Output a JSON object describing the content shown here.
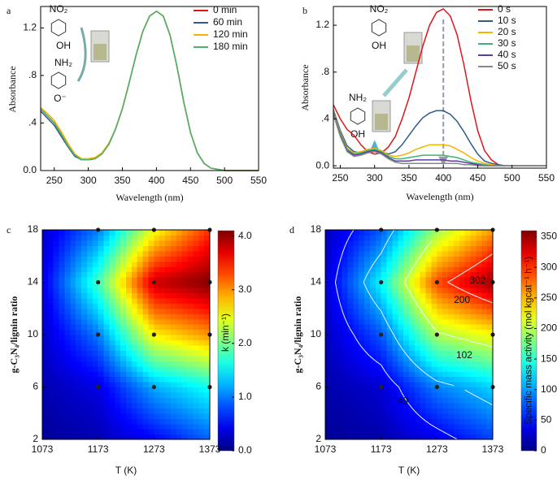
{
  "chart_data": [
    {
      "type": "line",
      "panel": "a",
      "xlabel": "Wavelength (nm)",
      "ylabel": "Absorbance",
      "x": [
        230,
        240,
        250,
        260,
        270,
        280,
        290,
        300,
        310,
        320,
        330,
        340,
        350,
        360,
        370,
        380,
        390,
        400,
        410,
        420,
        430,
        440,
        450,
        460,
        470,
        480,
        490,
        500,
        510,
        520,
        530,
        540,
        550
      ],
      "series": [
        {
          "name": "0 min",
          "color": "#e0151b",
          "values": [
            0.52,
            0.46,
            0.4,
            0.31,
            0.21,
            0.13,
            0.09,
            0.09,
            0.1,
            0.14,
            0.22,
            0.35,
            0.52,
            0.74,
            0.97,
            1.17,
            1.3,
            1.34,
            1.3,
            1.14,
            0.88,
            0.58,
            0.32,
            0.15,
            0.06,
            0.02,
            0.01,
            0,
            0,
            0,
            0,
            0,
            0
          ]
        },
        {
          "name": "60 min",
          "color": "#2f5b8a",
          "values": [
            0.5,
            0.44,
            0.38,
            0.29,
            0.2,
            0.12,
            0.09,
            0.09,
            0.1,
            0.14,
            0.22,
            0.35,
            0.52,
            0.74,
            0.97,
            1.17,
            1.3,
            1.34,
            1.3,
            1.14,
            0.88,
            0.58,
            0.32,
            0.15,
            0.06,
            0.02,
            0.01,
            0,
            0,
            0,
            0,
            0,
            0
          ]
        },
        {
          "name": "120 min",
          "color": "#f5b400",
          "values": [
            0.53,
            0.48,
            0.42,
            0.33,
            0.23,
            0.14,
            0.1,
            0.1,
            0.11,
            0.15,
            0.23,
            0.35,
            0.52,
            0.74,
            0.97,
            1.17,
            1.3,
            1.34,
            1.3,
            1.14,
            0.88,
            0.58,
            0.32,
            0.15,
            0.06,
            0.02,
            0.01,
            0,
            0,
            0,
            0,
            0,
            0
          ]
        },
        {
          "name": "180 min",
          "color": "#4cb36a",
          "values": [
            0.52,
            0.46,
            0.4,
            0.31,
            0.21,
            0.13,
            0.09,
            0.09,
            0.1,
            0.14,
            0.22,
            0.35,
            0.52,
            0.74,
            0.97,
            1.17,
            1.3,
            1.34,
            1.3,
            1.14,
            0.88,
            0.58,
            0.32,
            0.15,
            0.06,
            0.02,
            0.01,
            0,
            0,
            0,
            0,
            0,
            0
          ]
        }
      ],
      "xlim": [
        230,
        550
      ],
      "xticks": [
        250,
        300,
        350,
        400,
        450,
        500,
        550
      ],
      "ylim": [
        0,
        1.38
      ],
      "yticks": [
        {
          "value": 0,
          "label": "0.0"
        },
        {
          "value": 0.4,
          "label": ".4"
        },
        {
          "value": 0.8,
          "label": ".8"
        },
        {
          "value": 1.2,
          "label": "1.2"
        }
      ],
      "legend": "upper right",
      "inset_labels": [
        "NO₂",
        "OH",
        "NH₂",
        "O⁻"
      ]
    },
    {
      "type": "line",
      "panel": "b",
      "xlabel": "Wavelength (nm)",
      "ylabel": "Absorbance",
      "x": [
        240,
        250,
        260,
        270,
        280,
        290,
        300,
        310,
        320,
        330,
        340,
        350,
        360,
        370,
        380,
        390,
        400,
        410,
        420,
        430,
        440,
        450,
        460,
        470,
        480,
        490,
        500,
        510,
        520,
        530,
        540,
        550
      ],
      "series": [
        {
          "name": "0 s",
          "color": "#e0151b",
          "values": [
            0.52,
            0.4,
            0.31,
            0.26,
            0.18,
            0.12,
            0.1,
            0.11,
            0.16,
            0.25,
            0.4,
            0.58,
            0.8,
            1.02,
            1.2,
            1.31,
            1.34,
            1.28,
            1.12,
            0.86,
            0.56,
            0.3,
            0.13,
            0.05,
            0.01,
            0,
            0,
            0,
            0,
            0,
            0,
            0
          ]
        },
        {
          "name": "10 s",
          "color": "#2f5b8a",
          "values": [
            0.48,
            0.3,
            0.17,
            0.12,
            0.11,
            0.13,
            0.14,
            0.12,
            0.1,
            0.12,
            0.18,
            0.26,
            0.34,
            0.41,
            0.45,
            0.47,
            0.47,
            0.44,
            0.38,
            0.29,
            0.19,
            0.1,
            0.04,
            0.02,
            0.01,
            0,
            0,
            0,
            0,
            0,
            0,
            0
          ]
        },
        {
          "name": "20 s",
          "color": "#f5b400",
          "values": [
            0.47,
            0.28,
            0.15,
            0.11,
            0.12,
            0.14,
            0.15,
            0.13,
            0.09,
            0.08,
            0.09,
            0.11,
            0.14,
            0.16,
            0.18,
            0.18,
            0.18,
            0.17,
            0.14,
            0.11,
            0.07,
            0.04,
            0.02,
            0.01,
            0,
            0,
            0,
            0,
            0,
            0,
            0,
            0
          ]
        },
        {
          "name": "30 s",
          "color": "#3cb371",
          "values": [
            0.46,
            0.27,
            0.14,
            0.1,
            0.11,
            0.13,
            0.14,
            0.12,
            0.08,
            0.06,
            0.06,
            0.07,
            0.08,
            0.09,
            0.09,
            0.09,
            0.09,
            0.08,
            0.07,
            0.05,
            0.03,
            0.02,
            0.01,
            0,
            0,
            0,
            0,
            0,
            0,
            0,
            0,
            0
          ]
        },
        {
          "name": "40 s",
          "color": "#5b3fa0",
          "values": [
            0.45,
            0.26,
            0.13,
            0.09,
            0.1,
            0.12,
            0.13,
            0.11,
            0.07,
            0.04,
            0.04,
            0.04,
            0.05,
            0.05,
            0.05,
            0.05,
            0.05,
            0.04,
            0.04,
            0.03,
            0.02,
            0.01,
            0,
            0,
            0,
            0,
            0,
            0,
            0,
            0,
            0,
            0
          ]
        },
        {
          "name": "50 s",
          "color": "#888888",
          "values": [
            0.44,
            0.25,
            0.12,
            0.08,
            0.09,
            0.11,
            0.12,
            0.1,
            0.06,
            0.03,
            0.02,
            0.02,
            0.02,
            0.02,
            0.02,
            0.02,
            0.02,
            0.02,
            0.02,
            0.01,
            0.01,
            0,
            0,
            0,
            0,
            0,
            0,
            0,
            0,
            0,
            0,
            0
          ]
        }
      ],
      "xlim": [
        240,
        550
      ],
      "xticks": [
        250,
        300,
        350,
        400,
        450,
        500,
        550
      ],
      "ylim": [
        -0.02,
        1.36
      ],
      "yticks": [
        {
          "value": 0,
          "label": "0.0"
        },
        {
          "value": 0.4,
          "label": ".4"
        },
        {
          "value": 0.8,
          "label": ".8"
        },
        {
          "value": 1.2,
          "label": "1.2"
        }
      ],
      "legend": "upper right",
      "inset_labels": [
        "NO₂",
        "OH",
        "NH₂",
        "OH"
      ]
    },
    {
      "type": "contour",
      "panel": "c",
      "xlabel": "T (K)",
      "ylabel": "g-C₃N₄/lignin ratio",
      "x": [
        1073,
        1173,
        1273,
        1373
      ],
      "y": [
        2,
        6,
        10,
        14,
        18
      ],
      "z": [
        [
          0.1,
          0.2,
          0.5,
          0.9
        ],
        [
          0.2,
          0.4,
          1.2,
          1.6
        ],
        [
          0.3,
          1.0,
          2.6,
          3.0
        ],
        [
          0.4,
          1.8,
          3.8,
          4.1
        ],
        [
          0.3,
          1.0,
          2.5,
          3.4
        ]
      ],
      "xlim": [
        1073,
        1373
      ],
      "xticks": [
        1073,
        1173,
        1273,
        1373
      ],
      "ylim": [
        2,
        18
      ],
      "yticks": [
        2,
        6,
        10,
        14,
        18
      ],
      "zlim": [
        0,
        4.1
      ],
      "zticks": [
        {
          "value": 0,
          "label": "0.0"
        },
        {
          "value": 1,
          "label": "1.0"
        },
        {
          "value": 2,
          "label": "2.0"
        },
        {
          "value": 3,
          "label": "3.0"
        },
        {
          "value": 4,
          "label": "4.0"
        }
      ],
      "colormap": "jet",
      "colorbar_label": "k (min⁻¹)"
    },
    {
      "type": "contour",
      "panel": "d",
      "xlabel": "T (K)",
      "ylabel": "g-C₃N₄/lignin ratio",
      "x": [
        1073,
        1173,
        1273,
        1373
      ],
      "y": [
        2,
        6,
        10,
        14,
        18
      ],
      "z": [
        [
          8,
          15,
          38,
          68
        ],
        [
          15,
          30,
          90,
          120
        ],
        [
          22,
          75,
          195,
          225
        ],
        [
          30,
          135,
          290,
          352
        ],
        [
          22,
          75,
          190,
          260
        ]
      ],
      "xlim": [
        1073,
        1373
      ],
      "xticks": [
        1073,
        1173,
        1273,
        1373
      ],
      "ylim": [
        2,
        18
      ],
      "yticks": [
        2,
        6,
        10,
        14,
        18
      ],
      "zlim": [
        0,
        360
      ],
      "zticks": [
        0,
        50,
        100,
        150,
        200,
        250,
        300,
        350
      ],
      "colormap": "jet",
      "colorbar_label": "Specific mass activity (mol kgcat⁻¹ h⁻¹)",
      "contour_levels": [
        302,
        200,
        102,
        49
      ]
    }
  ]
}
